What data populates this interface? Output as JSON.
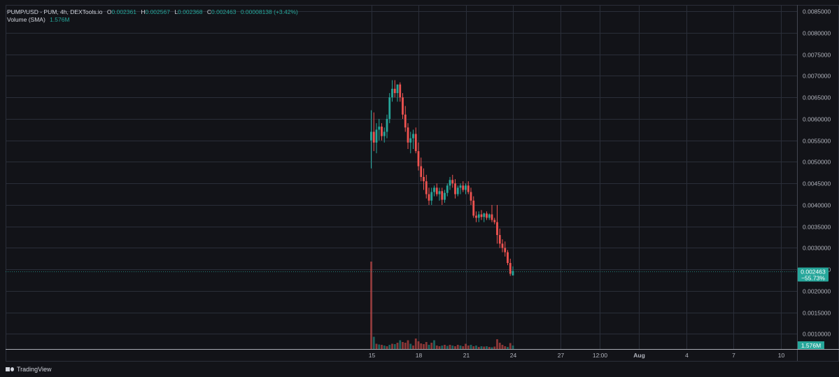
{
  "legend": {
    "symbol": "PUMP/USD - PUM, 4h, DEXTools.io",
    "o_label": "O",
    "o_value": "0.002361",
    "h_label": "H",
    "h_value": "0.002567",
    "l_label": "L",
    "l_value": "0.002368",
    "c_label": "C",
    "c_value": "0.002463",
    "change": "0.00008138 (+3.42%)",
    "volume_label": "Volume (SMA)",
    "volume_value": "1.576M"
  },
  "branding": {
    "name": "TradingView"
  },
  "colors": {
    "up": "#26a69a",
    "down": "#ef5350",
    "grid": "#2a2e39",
    "background": "#121318"
  },
  "chart_data": {
    "type": "candlestick",
    "title": "PUMP/USD - PUM, 4h, DEXTools.io",
    "y_ticks": [
      "0.0085000",
      "0.0080000",
      "0.0075000",
      "0.0070000",
      "0.0065000",
      "0.0060000",
      "0.0055000",
      "0.0050000",
      "0.0045000",
      "0.0040000",
      "0.0035000",
      "0.0030000",
      "0.0025000",
      "0.0020000",
      "0.0015000",
      "0.0010000"
    ],
    "ylim": [
      0.00065,
      0.00865
    ],
    "x_ticks": [
      "15",
      "18",
      "21",
      "24",
      "27",
      "12:00",
      "Aug",
      "4",
      "7",
      "10"
    ],
    "x_tick_bar_index": [
      0,
      18,
      36,
      54,
      72,
      87,
      102,
      120,
      138,
      156
    ],
    "last_price": {
      "label": "0.002463",
      "change": "−55.73%",
      "value": 0.002463
    },
    "volume_badge": "1.576M",
    "candles": [
      {
        "o": 0.0055,
        "h": 0.0062,
        "l": 0.00485,
        "c": 0.0057
      },
      {
        "o": 0.0057,
        "h": 0.00615,
        "l": 0.00525,
        "c": 0.00545
      },
      {
        "o": 0.00545,
        "h": 0.0059,
        "l": 0.0052,
        "c": 0.00575
      },
      {
        "o": 0.00575,
        "h": 0.006,
        "l": 0.0055,
        "c": 0.00582
      },
      {
        "o": 0.00582,
        "h": 0.0059,
        "l": 0.0055,
        "c": 0.0056
      },
      {
        "o": 0.0056,
        "h": 0.0058,
        "l": 0.00545,
        "c": 0.0057
      },
      {
        "o": 0.0057,
        "h": 0.0061,
        "l": 0.00555,
        "c": 0.006
      },
      {
        "o": 0.006,
        "h": 0.0066,
        "l": 0.0059,
        "c": 0.0065
      },
      {
        "o": 0.0065,
        "h": 0.0069,
        "l": 0.0064,
        "c": 0.0067
      },
      {
        "o": 0.0067,
        "h": 0.0069,
        "l": 0.0065,
        "c": 0.0066
      },
      {
        "o": 0.0066,
        "h": 0.0068,
        "l": 0.0064,
        "c": 0.0068
      },
      {
        "o": 0.0068,
        "h": 0.00685,
        "l": 0.0064,
        "c": 0.0065
      },
      {
        "o": 0.0065,
        "h": 0.0066,
        "l": 0.006,
        "c": 0.0061
      },
      {
        "o": 0.0061,
        "h": 0.0063,
        "l": 0.0057,
        "c": 0.0058
      },
      {
        "o": 0.0058,
        "h": 0.0059,
        "l": 0.0053,
        "c": 0.00545
      },
      {
        "o": 0.00545,
        "h": 0.0057,
        "l": 0.0052,
        "c": 0.00555
      },
      {
        "o": 0.00555,
        "h": 0.00575,
        "l": 0.0053,
        "c": 0.00565
      },
      {
        "o": 0.00565,
        "h": 0.0058,
        "l": 0.0052,
        "c": 0.00525
      },
      {
        "o": 0.00525,
        "h": 0.00545,
        "l": 0.0048,
        "c": 0.0049
      },
      {
        "o": 0.0049,
        "h": 0.0051,
        "l": 0.00455,
        "c": 0.00465
      },
      {
        "o": 0.00465,
        "h": 0.00485,
        "l": 0.00435,
        "c": 0.00455
      },
      {
        "o": 0.00455,
        "h": 0.0047,
        "l": 0.00415,
        "c": 0.00425
      },
      {
        "o": 0.00425,
        "h": 0.0044,
        "l": 0.004,
        "c": 0.0041
      },
      {
        "o": 0.0041,
        "h": 0.0044,
        "l": 0.004,
        "c": 0.0043
      },
      {
        "o": 0.0043,
        "h": 0.00445,
        "l": 0.0042,
        "c": 0.0044
      },
      {
        "o": 0.0044,
        "h": 0.0045,
        "l": 0.0042,
        "c": 0.00425
      },
      {
        "o": 0.00425,
        "h": 0.0044,
        "l": 0.0041,
        "c": 0.00432
      },
      {
        "o": 0.00432,
        "h": 0.0044,
        "l": 0.004,
        "c": 0.00412
      },
      {
        "o": 0.00412,
        "h": 0.00435,
        "l": 0.00405,
        "c": 0.00428
      },
      {
        "o": 0.00428,
        "h": 0.0045,
        "l": 0.0042,
        "c": 0.00445
      },
      {
        "o": 0.00445,
        "h": 0.00465,
        "l": 0.00435,
        "c": 0.00458
      },
      {
        "o": 0.00458,
        "h": 0.0047,
        "l": 0.0044,
        "c": 0.0045
      },
      {
        "o": 0.0045,
        "h": 0.0046,
        "l": 0.00415,
        "c": 0.00425
      },
      {
        "o": 0.00425,
        "h": 0.00445,
        "l": 0.0042,
        "c": 0.0044
      },
      {
        "o": 0.0044,
        "h": 0.0045,
        "l": 0.00425,
        "c": 0.00445
      },
      {
        "o": 0.00445,
        "h": 0.00455,
        "l": 0.0043,
        "c": 0.00435
      },
      {
        "o": 0.00435,
        "h": 0.0045,
        "l": 0.00425,
        "c": 0.00445
      },
      {
        "o": 0.00445,
        "h": 0.00455,
        "l": 0.00425,
        "c": 0.0043
      },
      {
        "o": 0.0043,
        "h": 0.0044,
        "l": 0.004,
        "c": 0.0041
      },
      {
        "o": 0.0041,
        "h": 0.0042,
        "l": 0.0037,
        "c": 0.00375
      },
      {
        "o": 0.00375,
        "h": 0.00385,
        "l": 0.0036,
        "c": 0.0037
      },
      {
        "o": 0.0037,
        "h": 0.00385,
        "l": 0.0036,
        "c": 0.00378
      },
      {
        "o": 0.00378,
        "h": 0.00388,
        "l": 0.00365,
        "c": 0.00372
      },
      {
        "o": 0.00372,
        "h": 0.00382,
        "l": 0.0036,
        "c": 0.0038
      },
      {
        "o": 0.0038,
        "h": 0.00385,
        "l": 0.00365,
        "c": 0.0037
      },
      {
        "o": 0.0037,
        "h": 0.0038,
        "l": 0.00365,
        "c": 0.00378
      },
      {
        "o": 0.00378,
        "h": 0.004,
        "l": 0.0036,
        "c": 0.00365
      },
      {
        "o": 0.00365,
        "h": 0.0037,
        "l": 0.00355,
        "c": 0.0036
      },
      {
        "o": 0.0036,
        "h": 0.004,
        "l": 0.0031,
        "c": 0.0033
      },
      {
        "o": 0.0033,
        "h": 0.00345,
        "l": 0.003,
        "c": 0.0031
      },
      {
        "o": 0.0031,
        "h": 0.0032,
        "l": 0.0029,
        "c": 0.003
      },
      {
        "o": 0.003,
        "h": 0.00315,
        "l": 0.0028,
        "c": 0.0029
      },
      {
        "o": 0.0029,
        "h": 0.00295,
        "l": 0.0026,
        "c": 0.00265
      },
      {
        "o": 0.00265,
        "h": 0.00275,
        "l": 0.00235,
        "c": 0.0024
      },
      {
        "o": 0.00236,
        "h": 0.00257,
        "l": 0.00237,
        "c": 0.00246
      }
    ],
    "volume": [
      {
        "v": 0.025,
        "up": false
      },
      {
        "v": 0.0035,
        "up": true
      },
      {
        "v": 0.0015,
        "up": false
      },
      {
        "v": 0.0013,
        "up": true
      },
      {
        "v": 0.0012,
        "up": false
      },
      {
        "v": 0.001,
        "up": true
      },
      {
        "v": 0.0008,
        "up": false
      },
      {
        "v": 0.0012,
        "up": true
      },
      {
        "v": 0.0015,
        "up": false
      },
      {
        "v": 0.0014,
        "up": true
      },
      {
        "v": 0.0018,
        "up": false
      },
      {
        "v": 0.0025,
        "up": true
      },
      {
        "v": 0.002,
        "up": false
      },
      {
        "v": 0.0018,
        "up": false
      },
      {
        "v": 0.0025,
        "up": false
      },
      {
        "v": 0.0015,
        "up": true
      },
      {
        "v": 0.001,
        "up": false
      },
      {
        "v": 0.003,
        "up": false
      },
      {
        "v": 0.0022,
        "up": false
      },
      {
        "v": 0.0016,
        "up": false
      },
      {
        "v": 0.0014,
        "up": false
      },
      {
        "v": 0.002,
        "up": false
      },
      {
        "v": 0.0012,
        "up": true
      },
      {
        "v": 0.0018,
        "up": false
      },
      {
        "v": 0.0025,
        "up": true
      },
      {
        "v": 0.001,
        "up": false
      },
      {
        "v": 0.0008,
        "up": false
      },
      {
        "v": 0.001,
        "up": true
      },
      {
        "v": 0.0012,
        "up": false
      },
      {
        "v": 0.0009,
        "up": true
      },
      {
        "v": 0.0012,
        "up": false
      },
      {
        "v": 0.001,
        "up": true
      },
      {
        "v": 0.0008,
        "up": false
      },
      {
        "v": 0.0012,
        "up": false
      },
      {
        "v": 0.001,
        "up": true
      },
      {
        "v": 0.0008,
        "up": false
      },
      {
        "v": 0.0015,
        "up": false
      },
      {
        "v": 0.001,
        "up": false
      },
      {
        "v": 0.0012,
        "up": true
      },
      {
        "v": 0.0008,
        "up": false
      },
      {
        "v": 0.001,
        "up": true
      },
      {
        "v": 0.0006,
        "up": false
      },
      {
        "v": 0.0008,
        "up": true
      },
      {
        "v": 0.0007,
        "up": false
      },
      {
        "v": 0.0008,
        "up": true
      },
      {
        "v": 0.0006,
        "up": false
      },
      {
        "v": 0.0005,
        "up": true
      },
      {
        "v": 0.0007,
        "up": false
      },
      {
        "v": 0.0028,
        "up": false
      },
      {
        "v": 0.0018,
        "up": false
      },
      {
        "v": 0.0012,
        "up": false
      },
      {
        "v": 0.0008,
        "up": false
      },
      {
        "v": 0.0006,
        "up": true
      },
      {
        "v": 0.0017,
        "up": false
      },
      {
        "v": 0.001,
        "up": true
      }
    ],
    "volume_max": 0.025
  }
}
